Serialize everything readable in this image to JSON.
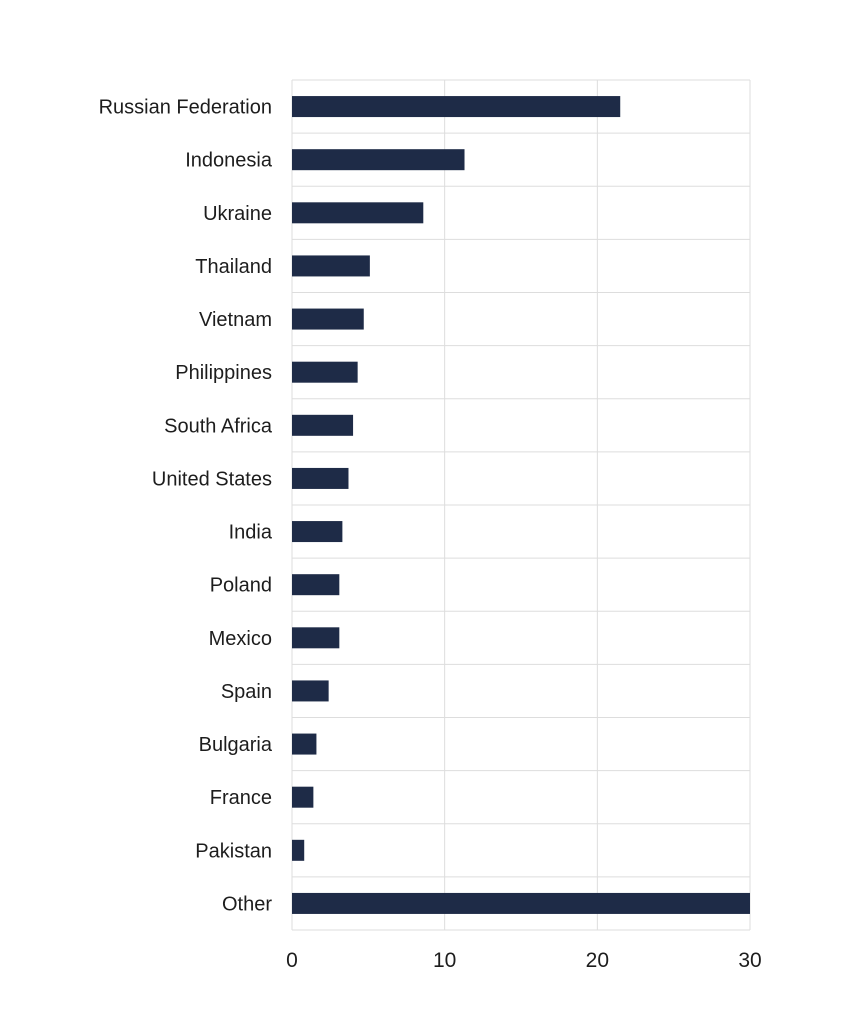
{
  "chart_data": {
    "type": "bar",
    "orientation": "horizontal",
    "title": "",
    "xlabel": "",
    "ylabel": "",
    "categories": [
      "Russian Federation",
      "Indonesia",
      "Ukraine",
      "Thailand",
      "Vietnam",
      "Philippines",
      "South Africa",
      "United States",
      "India",
      "Poland",
      "Mexico",
      "Spain",
      "Bulgaria",
      "France",
      "Pakistan",
      "Other"
    ],
    "values": [
      21.5,
      11.3,
      8.6,
      5.1,
      4.7,
      4.3,
      4.0,
      3.7,
      3.3,
      3.1,
      3.1,
      2.4,
      1.6,
      1.4,
      0.8,
      30
    ],
    "xlim": [
      0,
      30
    ],
    "xticks": [
      "0",
      "10",
      "20",
      "30"
    ],
    "grid": true,
    "bar_color": "#1e2b47",
    "grid_color": "#dddddd"
  }
}
